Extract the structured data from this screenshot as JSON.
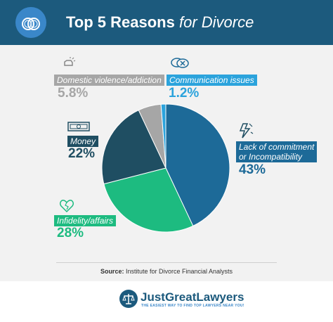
{
  "header": {
    "title_bold": "Top 5 Reasons",
    "title_italic": "for Divorce",
    "icon": "wedding-rings-icon"
  },
  "chart_data": {
    "type": "pie",
    "title": "Top 5 Reasons for Divorce",
    "slices": [
      {
        "label": "Lack of commitment or Incompatibility",
        "label_line1": "Lack of commitment",
        "label_line2": "or Incompatibility",
        "value": 43,
        "display": "43%",
        "color": "#1d6a98",
        "icon": "lightning-icon"
      },
      {
        "label": "Infidelity/affairs",
        "value": 28,
        "display": "28%",
        "color": "#1dbb80",
        "icon": "broken-heart-icon"
      },
      {
        "label": "Money",
        "value": 22,
        "display": "22%",
        "color": "#1f4e62",
        "icon": "money-icon"
      },
      {
        "label": "Domestic violence/addiction",
        "value": 5.8,
        "display": "5.8%",
        "color": "#a6a6a6",
        "icon": "fist-icon"
      },
      {
        "label": "Communication issues",
        "value": 1.2,
        "display": "1.2%",
        "color": "#2ba3dc",
        "icon": "chat-bubbles-icon"
      }
    ],
    "start_angle_deg": 0,
    "direction": "clockwise"
  },
  "footer": {
    "source_prefix": "Source:",
    "source_text": "Institute for Divorce Financial Analysts",
    "brand_name": "JustGreatLawyers",
    "brand_tagline": "THE EASIEST WAY TO FIND TOP LAWYERS NEAR YOU!",
    "brand_icon": "scales-icon"
  }
}
